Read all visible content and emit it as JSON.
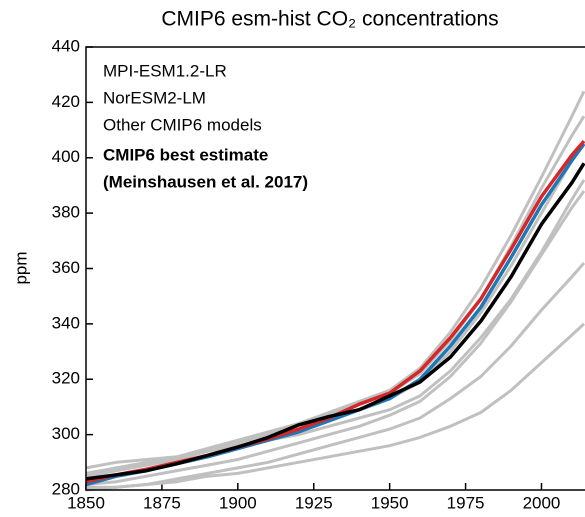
{
  "chart_data": {
    "type": "line",
    "title": "CMIP6 esm-hist CO₂ concentrations",
    "y_label": "ppm",
    "x": [
      1850,
      1860,
      1870,
      1880,
      1890,
      1900,
      1910,
      1920,
      1930,
      1940,
      1950,
      1960,
      1970,
      1980,
      1990,
      2000,
      2010,
      2014
    ],
    "xlim": [
      1850,
      2014
    ],
    "xticks": [
      1850,
      1875,
      1900,
      1925,
      1950,
      1975,
      2000
    ],
    "ylim": [
      280,
      440
    ],
    "yticks": [
      280,
      300,
      320,
      340,
      360,
      380,
      400,
      420,
      440
    ],
    "series": [
      {
        "name": "MPI-ESM1.2-LR",
        "color": "#1f77b4",
        "values": [
          282,
          285,
          287,
          289.5,
          292,
          295,
          298,
          301,
          305,
          309,
          313,
          320,
          332,
          346,
          364,
          383,
          399,
          405
        ]
      },
      {
        "name": "NorESM2-LM",
        "color": "#d62728",
        "values": [
          283,
          285.5,
          287.5,
          290,
          292.5,
          295.5,
          298.5,
          302,
          306,
          311,
          315,
          323,
          335,
          349,
          367,
          386,
          401,
          406
        ]
      },
      {
        "name": "Other CMIP6 models",
        "color": "#c0c0c0",
        "members": [
          [
            286,
            288,
            290,
            292,
            295,
            298,
            301,
            304,
            308,
            312,
            316,
            324,
            337,
            353,
            372,
            393,
            415,
            424
          ],
          [
            285,
            287,
            289,
            291,
            294,
            297,
            300,
            304,
            307,
            311,
            315,
            322,
            334,
            349,
            368,
            389,
            408,
            415
          ],
          [
            283,
            285,
            287,
            290,
            292,
            295,
            299,
            302,
            306,
            309,
            313,
            319,
            330,
            344,
            361,
            380,
            399,
            406
          ],
          [
            280,
            281,
            282,
            284,
            286,
            288,
            290,
            293,
            296,
            299,
            302,
            306,
            313,
            321,
            332,
            345,
            357,
            362
          ],
          [
            281,
            281,
            282,
            283,
            285,
            286,
            288,
            290,
            292,
            294,
            296,
            299,
            303,
            308,
            316,
            326,
            336,
            340
          ],
          [
            288,
            290,
            291,
            292,
            294,
            296,
            298,
            300,
            303,
            306,
            309,
            314,
            323,
            335,
            349,
            366,
            385,
            392
          ],
          [
            282,
            283,
            285,
            287,
            289,
            291,
            294,
            297,
            300,
            303,
            307,
            312,
            321,
            333,
            348,
            365,
            382,
            388
          ]
        ]
      },
      {
        "name": [
          "CMIP6 best estimate",
          "(Meinshausen et al. 2017)"
        ],
        "color": "#000000",
        "bold": true,
        "values": [
          284,
          285.5,
          287,
          289.5,
          292.5,
          295.5,
          299,
          303.5,
          306.5,
          309,
          314,
          319,
          328,
          341,
          357,
          376,
          391,
          398
        ]
      }
    ]
  }
}
